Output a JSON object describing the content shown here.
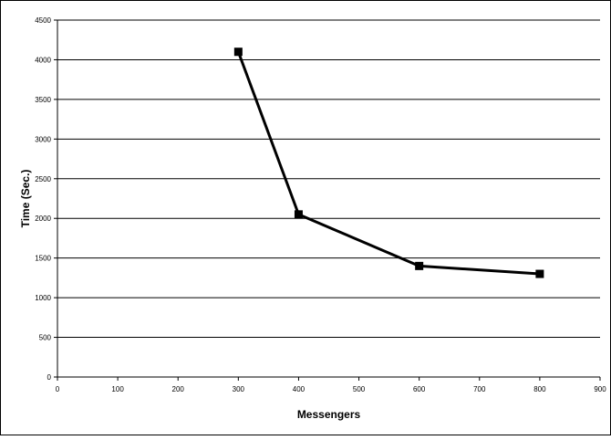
{
  "chart_data": {
    "type": "line",
    "title": "",
    "xlabel": "Messengers",
    "ylabel": "Time (Sec.)",
    "xlim": [
      0,
      900
    ],
    "ylim": [
      0,
      4500
    ],
    "x_ticks": [
      "0",
      "100",
      "200",
      "300",
      "400",
      "500",
      "600",
      "700",
      "800",
      "900"
    ],
    "y_ticks": [
      "0",
      "500",
      "1000",
      "1500",
      "2000",
      "2500",
      "3000",
      "3500",
      "4000",
      "4500"
    ],
    "grid": "horizontal",
    "legend": "none",
    "series": [
      {
        "x": [
          300,
          400,
          600,
          800
        ],
        "y": [
          4100,
          2050,
          1400,
          1300
        ],
        "color": "#000000",
        "marker": "square"
      }
    ]
  }
}
